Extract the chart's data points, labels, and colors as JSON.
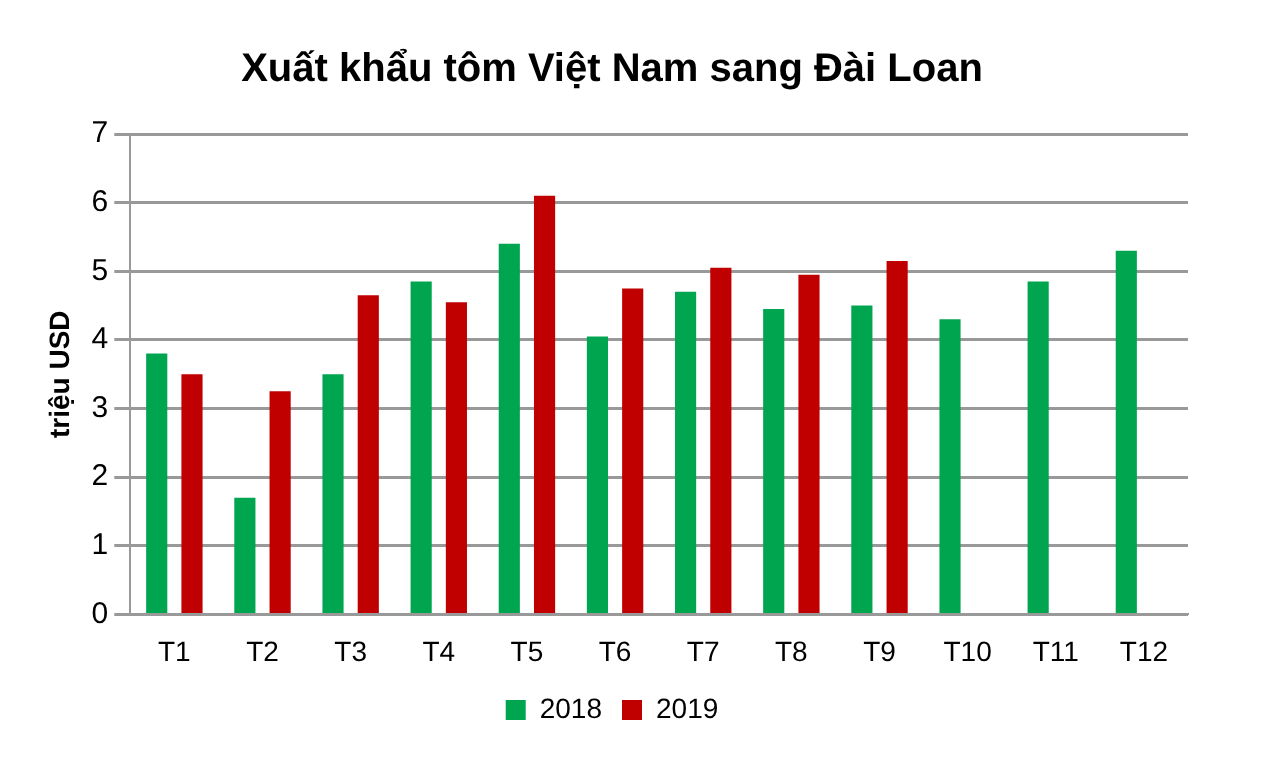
{
  "chart_data": {
    "type": "bar",
    "title": "Xuất khẩu tôm Việt Nam sang Đài Loan",
    "ylabel": "triệu USD",
    "categories": [
      "T1",
      "T2",
      "T3",
      "T4",
      "T5",
      "T6",
      "T7",
      "T8",
      "T9",
      "T10",
      "T11",
      "T12"
    ],
    "series": [
      {
        "name": "2018",
        "color": "#00a550",
        "values": [
          3.8,
          1.7,
          3.5,
          4.85,
          5.4,
          4.05,
          4.7,
          4.45,
          4.5,
          4.3,
          4.85,
          5.3
        ]
      },
      {
        "name": "2019",
        "color": "#c00000",
        "values": [
          3.5,
          3.25,
          4.65,
          4.55,
          6.1,
          4.75,
          5.05,
          4.95,
          5.15,
          null,
          null,
          null
        ]
      }
    ],
    "ylim": [
      0,
      7
    ],
    "yticks": [
      0,
      1,
      2,
      3,
      4,
      5,
      6,
      7
    ],
    "grid": "y",
    "legend": "bottom"
  }
}
